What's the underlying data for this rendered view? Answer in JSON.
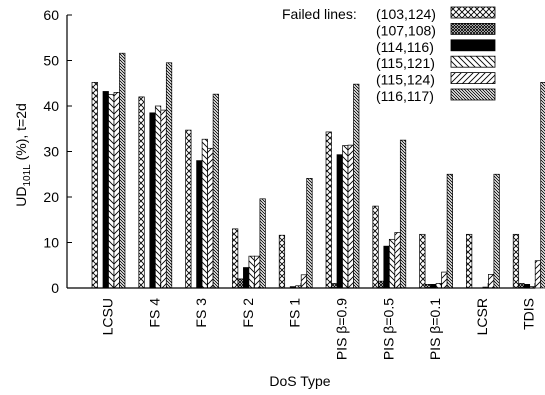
{
  "chart_data": {
    "type": "bar",
    "xlabel": "DoS Type",
    "ylabel": {
      "main": "UD",
      "sub": "101L",
      "rest": " (%), t=2d"
    },
    "ylim": [
      0,
      60
    ],
    "yticks": [
      0,
      10,
      20,
      30,
      40,
      50,
      60
    ],
    "grid": false,
    "legend": {
      "title": "Failed lines:",
      "position": "top-right"
    },
    "categories": [
      "LCSU",
      "FS 4",
      "FS 3",
      "FS 2",
      "FS 1",
      "PIS β=0.9",
      "PIS β=0.5",
      "PIS β=0.1",
      "LCSR",
      "TDIS"
    ],
    "series": [
      {
        "name": "(103,124)",
        "pattern": "crosshatch",
        "values": [
          45.2,
          42.0,
          34.7,
          13.0,
          11.6,
          34.3,
          18.0,
          11.8,
          11.8,
          11.8
        ]
      },
      {
        "name": "(107,108)",
        "pattern": "dense-check",
        "values": [
          0,
          0,
          0,
          2.0,
          0,
          1.0,
          1.5,
          0.8,
          0,
          1.0
        ]
      },
      {
        "name": "(114,116)",
        "pattern": "solid",
        "values": [
          43.2,
          38.5,
          28.0,
          4.5,
          0.3,
          29.3,
          9.2,
          0.8,
          0,
          0.8
        ]
      },
      {
        "name": "(115,121)",
        "pattern": "backslash",
        "values": [
          42.5,
          40.0,
          32.7,
          7.0,
          0.5,
          31.3,
          10.7,
          1.0,
          0.2,
          0.3
        ]
      },
      {
        "name": "(115,124)",
        "pattern": "slash",
        "values": [
          43.0,
          39.1,
          30.7,
          7.0,
          2.9,
          31.4,
          12.2,
          3.5,
          3.0,
          6.0
        ]
      },
      {
        "name": "(116,117)",
        "pattern": "dense-backslash",
        "values": [
          51.6,
          49.5,
          42.6,
          19.6,
          24.1,
          44.8,
          32.5,
          25.0,
          25.0,
          45.2
        ]
      }
    ]
  }
}
